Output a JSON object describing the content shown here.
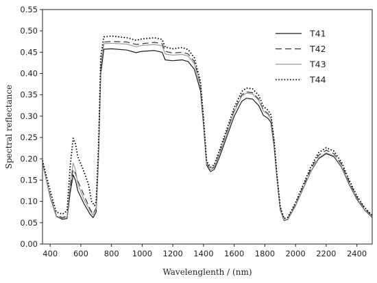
{
  "chart_data": {
    "type": "line",
    "xlabel": "Wavelenglenth / (nm)",
    "ylabel": "Spectral reflectance",
    "xlim": [
      350,
      2500
    ],
    "ylim": [
      0,
      0.55
    ],
    "xticks": [
      400,
      600,
      800,
      1000,
      1200,
      1400,
      1600,
      1800,
      2000,
      2200,
      2400
    ],
    "yticks": [
      0.0,
      0.05,
      0.1,
      0.15,
      0.2,
      0.25,
      0.3,
      0.35,
      0.4,
      0.45,
      0.5,
      0.55
    ],
    "ytick_labels": [
      "0.00",
      "0.05",
      "0.10",
      "0.15",
      "0.20",
      "0.25",
      "0.30",
      "0.35",
      "0.40",
      "0.45",
      "0.50",
      "0.55"
    ],
    "grid": false,
    "legend_position": "top-right",
    "series": [
      {
        "name": "T41",
        "style": "solid",
        "color": "#1a1a1a",
        "points": [
          [
            350,
            0.19
          ],
          [
            400,
            0.11
          ],
          [
            440,
            0.065
          ],
          [
            480,
            0.058
          ],
          [
            510,
            0.06
          ],
          [
            530,
            0.12
          ],
          [
            550,
            0.162
          ],
          [
            565,
            0.15
          ],
          [
            580,
            0.125
          ],
          [
            620,
            0.095
          ],
          [
            660,
            0.07
          ],
          [
            680,
            0.062
          ],
          [
            700,
            0.075
          ],
          [
            715,
            0.2
          ],
          [
            730,
            0.4
          ],
          [
            750,
            0.457
          ],
          [
            800,
            0.458
          ],
          [
            900,
            0.455
          ],
          [
            960,
            0.449
          ],
          [
            1000,
            0.452
          ],
          [
            1080,
            0.454
          ],
          [
            1130,
            0.45
          ],
          [
            1150,
            0.432
          ],
          [
            1200,
            0.43
          ],
          [
            1260,
            0.432
          ],
          [
            1300,
            0.428
          ],
          [
            1340,
            0.41
          ],
          [
            1380,
            0.36
          ],
          [
            1400,
            0.28
          ],
          [
            1420,
            0.185
          ],
          [
            1445,
            0.17
          ],
          [
            1470,
            0.175
          ],
          [
            1500,
            0.2
          ],
          [
            1550,
            0.25
          ],
          [
            1600,
            0.3
          ],
          [
            1650,
            0.335
          ],
          [
            1680,
            0.342
          ],
          [
            1720,
            0.34
          ],
          [
            1760,
            0.325
          ],
          [
            1790,
            0.302
          ],
          [
            1820,
            0.295
          ],
          [
            1840,
            0.285
          ],
          [
            1860,
            0.23
          ],
          [
            1880,
            0.15
          ],
          [
            1900,
            0.08
          ],
          [
            1925,
            0.055
          ],
          [
            1950,
            0.058
          ],
          [
            2000,
            0.09
          ],
          [
            2050,
            0.13
          ],
          [
            2100,
            0.17
          ],
          [
            2150,
            0.2
          ],
          [
            2200,
            0.212
          ],
          [
            2250,
            0.205
          ],
          [
            2300,
            0.18
          ],
          [
            2350,
            0.14
          ],
          [
            2400,
            0.105
          ],
          [
            2450,
            0.08
          ],
          [
            2500,
            0.062
          ]
        ]
      },
      {
        "name": "T42",
        "style": "dashed",
        "color": "#333333",
        "points": [
          [
            350,
            0.19
          ],
          [
            400,
            0.115
          ],
          [
            440,
            0.068
          ],
          [
            480,
            0.062
          ],
          [
            510,
            0.066
          ],
          [
            530,
            0.13
          ],
          [
            550,
            0.175
          ],
          [
            565,
            0.165
          ],
          [
            580,
            0.148
          ],
          [
            620,
            0.115
          ],
          [
            660,
            0.082
          ],
          [
            680,
            0.07
          ],
          [
            700,
            0.085
          ],
          [
            715,
            0.21
          ],
          [
            730,
            0.42
          ],
          [
            750,
            0.474
          ],
          [
            800,
            0.475
          ],
          [
            900,
            0.474
          ],
          [
            960,
            0.468
          ],
          [
            1000,
            0.47
          ],
          [
            1080,
            0.473
          ],
          [
            1130,
            0.47
          ],
          [
            1150,
            0.452
          ],
          [
            1200,
            0.448
          ],
          [
            1260,
            0.45
          ],
          [
            1300,
            0.446
          ],
          [
            1340,
            0.428
          ],
          [
            1380,
            0.374
          ],
          [
            1400,
            0.29
          ],
          [
            1420,
            0.19
          ],
          [
            1445,
            0.176
          ],
          [
            1470,
            0.181
          ],
          [
            1500,
            0.21
          ],
          [
            1550,
            0.262
          ],
          [
            1600,
            0.313
          ],
          [
            1650,
            0.35
          ],
          [
            1680,
            0.357
          ],
          [
            1720,
            0.355
          ],
          [
            1760,
            0.34
          ],
          [
            1790,
            0.315
          ],
          [
            1820,
            0.306
          ],
          [
            1840,
            0.296
          ],
          [
            1860,
            0.24
          ],
          [
            1880,
            0.155
          ],
          [
            1900,
            0.085
          ],
          [
            1925,
            0.058
          ],
          [
            1950,
            0.061
          ],
          [
            2000,
            0.094
          ],
          [
            2050,
            0.135
          ],
          [
            2100,
            0.176
          ],
          [
            2150,
            0.208
          ],
          [
            2200,
            0.22
          ],
          [
            2250,
            0.212
          ],
          [
            2300,
            0.187
          ],
          [
            2350,
            0.146
          ],
          [
            2400,
            0.11
          ],
          [
            2450,
            0.084
          ],
          [
            2500,
            0.065
          ]
        ]
      },
      {
        "name": "T43",
        "style": "solid",
        "color": "#9a9a9a",
        "points": [
          [
            350,
            0.188
          ],
          [
            400,
            0.112
          ],
          [
            440,
            0.066
          ],
          [
            480,
            0.06
          ],
          [
            510,
            0.064
          ],
          [
            530,
            0.14
          ],
          [
            550,
            0.19
          ],
          [
            565,
            0.175
          ],
          [
            580,
            0.14
          ],
          [
            620,
            0.105
          ],
          [
            660,
            0.078
          ],
          [
            680,
            0.068
          ],
          [
            700,
            0.082
          ],
          [
            715,
            0.205
          ],
          [
            730,
            0.415
          ],
          [
            750,
            0.47
          ],
          [
            800,
            0.471
          ],
          [
            900,
            0.469
          ],
          [
            960,
            0.463
          ],
          [
            1000,
            0.466
          ],
          [
            1080,
            0.468
          ],
          [
            1130,
            0.465
          ],
          [
            1150,
            0.446
          ],
          [
            1200,
            0.443
          ],
          [
            1260,
            0.445
          ],
          [
            1300,
            0.441
          ],
          [
            1340,
            0.423
          ],
          [
            1380,
            0.37
          ],
          [
            1400,
            0.286
          ],
          [
            1420,
            0.188
          ],
          [
            1445,
            0.174
          ],
          [
            1470,
            0.179
          ],
          [
            1500,
            0.207
          ],
          [
            1550,
            0.258
          ],
          [
            1600,
            0.31
          ],
          [
            1650,
            0.347
          ],
          [
            1680,
            0.354
          ],
          [
            1720,
            0.352
          ],
          [
            1760,
            0.337
          ],
          [
            1790,
            0.312
          ],
          [
            1820,
            0.304
          ],
          [
            1840,
            0.293
          ],
          [
            1860,
            0.236
          ],
          [
            1880,
            0.152
          ],
          [
            1900,
            0.082
          ],
          [
            1925,
            0.056
          ],
          [
            1950,
            0.059
          ],
          [
            2000,
            0.091
          ],
          [
            2050,
            0.131
          ],
          [
            2100,
            0.171
          ],
          [
            2150,
            0.202
          ],
          [
            2200,
            0.214
          ],
          [
            2250,
            0.207
          ],
          [
            2300,
            0.182
          ],
          [
            2350,
            0.142
          ],
          [
            2400,
            0.107
          ],
          [
            2450,
            0.081
          ],
          [
            2500,
            0.063
          ]
        ]
      },
      {
        "name": "T44",
        "style": "dotted",
        "color": "#000000",
        "points": [
          [
            350,
            0.196
          ],
          [
            400,
            0.125
          ],
          [
            440,
            0.075
          ],
          [
            480,
            0.07
          ],
          [
            510,
            0.078
          ],
          [
            530,
            0.18
          ],
          [
            550,
            0.248
          ],
          [
            565,
            0.235
          ],
          [
            580,
            0.205
          ],
          [
            620,
            0.17
          ],
          [
            650,
            0.14
          ],
          [
            670,
            0.1
          ],
          [
            690,
            0.09
          ],
          [
            700,
            0.1
          ],
          [
            715,
            0.23
          ],
          [
            730,
            0.44
          ],
          [
            750,
            0.486
          ],
          [
            800,
            0.488
          ],
          [
            900,
            0.484
          ],
          [
            960,
            0.478
          ],
          [
            1000,
            0.481
          ],
          [
            1080,
            0.484
          ],
          [
            1130,
            0.48
          ],
          [
            1150,
            0.462
          ],
          [
            1200,
            0.458
          ],
          [
            1260,
            0.461
          ],
          [
            1300,
            0.456
          ],
          [
            1340,
            0.437
          ],
          [
            1380,
            0.382
          ],
          [
            1400,
            0.296
          ],
          [
            1420,
            0.195
          ],
          [
            1445,
            0.18
          ],
          [
            1470,
            0.186
          ],
          [
            1500,
            0.216
          ],
          [
            1550,
            0.268
          ],
          [
            1600,
            0.32
          ],
          [
            1650,
            0.358
          ],
          [
            1680,
            0.366
          ],
          [
            1720,
            0.364
          ],
          [
            1760,
            0.349
          ],
          [
            1790,
            0.323
          ],
          [
            1820,
            0.314
          ],
          [
            1840,
            0.303
          ],
          [
            1860,
            0.245
          ],
          [
            1880,
            0.158
          ],
          [
            1900,
            0.088
          ],
          [
            1925,
            0.06
          ],
          [
            1950,
            0.063
          ],
          [
            2000,
            0.097
          ],
          [
            2050,
            0.139
          ],
          [
            2100,
            0.181
          ],
          [
            2150,
            0.214
          ],
          [
            2200,
            0.226
          ],
          [
            2250,
            0.218
          ],
          [
            2300,
            0.192
          ],
          [
            2350,
            0.15
          ],
          [
            2400,
            0.113
          ],
          [
            2450,
            0.086
          ],
          [
            2500,
            0.067
          ]
        ]
      }
    ]
  }
}
